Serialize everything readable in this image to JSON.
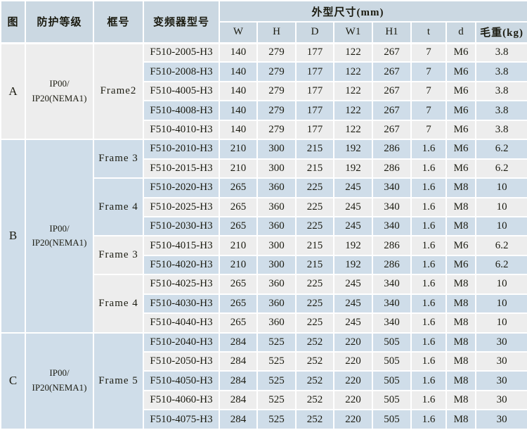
{
  "colors": {
    "header_bg": "#cbd8e2",
    "group_bg": "#dce3ee",
    "row_blue": "#cfdde9",
    "row_gray": "#ededed",
    "text_color": "#1b1b10",
    "grid": "#ffffff"
  },
  "table": {
    "headers": {
      "figure": "图",
      "protection": "防护等级",
      "frame": "框号",
      "model": "变频器型号",
      "dimensions": "外型尺寸(mm)",
      "sub_columns": [
        "W",
        "H",
        "D",
        "W1",
        "H1",
        "t",
        "d"
      ],
      "weight": "毛重(kg)"
    },
    "groups": [
      {
        "figure": "A",
        "protection": "IP00/\nIP20(NEMA1)",
        "frames": [
          {
            "label": "Frame2",
            "rows": [
              {
                "model": "F510-2005-H3",
                "values": [
                  "140",
                  "279",
                  "177",
                  "122",
                  "267",
                  "7",
                  "M6"
                ],
                "weight": "3.8"
              },
              {
                "model": "F510-2008-H3",
                "values": [
                  "140",
                  "279",
                  "177",
                  "122",
                  "267",
                  "7",
                  "M6"
                ],
                "weight": "3.8"
              },
              {
                "model": "F510-4005-H3",
                "values": [
                  "140",
                  "279",
                  "177",
                  "122",
                  "267",
                  "7",
                  "M6"
                ],
                "weight": "3.8"
              },
              {
                "model": "F510-4008-H3",
                "values": [
                  "140",
                  "279",
                  "177",
                  "122",
                  "267",
                  "7",
                  "M6"
                ],
                "weight": "3.8"
              },
              {
                "model": "F510-4010-H3",
                "values": [
                  "140",
                  "279",
                  "177",
                  "122",
                  "267",
                  "7",
                  "M6"
                ],
                "weight": "3.8"
              }
            ]
          }
        ]
      },
      {
        "figure": "B",
        "protection": "IP00/\nIP20(NEMA1)",
        "frames": [
          {
            "label": "Frame 3",
            "rows": [
              {
                "model": "F510-2010-H3",
                "values": [
                  "210",
                  "300",
                  "215",
                  "192",
                  "286",
                  "1.6",
                  "M6"
                ],
                "weight": "6.2"
              },
              {
                "model": "F510-2015-H3",
                "values": [
                  "210",
                  "300",
                  "215",
                  "192",
                  "286",
                  "1.6",
                  "M6"
                ],
                "weight": "6.2"
              }
            ]
          },
          {
            "label": "Frame 4",
            "rows": [
              {
                "model": "F510-2020-H3",
                "values": [
                  "265",
                  "360",
                  "225",
                  "245",
                  "340",
                  "1.6",
                  "M8"
                ],
                "weight": "10"
              },
              {
                "model": "F510-2025-H3",
                "values": [
                  "265",
                  "360",
                  "225",
                  "245",
                  "340",
                  "1.6",
                  "M8"
                ],
                "weight": "10"
              },
              {
                "model": "F510-2030-H3",
                "values": [
                  "265",
                  "360",
                  "225",
                  "245",
                  "340",
                  "1.6",
                  "M8"
                ],
                "weight": "10"
              }
            ]
          },
          {
            "label": "Frame 3",
            "rows": [
              {
                "model": "F510-4015-H3",
                "values": [
                  "210",
                  "300",
                  "215",
                  "192",
                  "286",
                  "1.6",
                  "M6"
                ],
                "weight": "6.2"
              },
              {
                "model": "F510-4020-H3",
                "values": [
                  "210",
                  "300",
                  "215",
                  "192",
                  "286",
                  "1.6",
                  "M6"
                ],
                "weight": "6.2"
              }
            ]
          },
          {
            "label": "Frame 4",
            "rows": [
              {
                "model": "F510-4025-H3",
                "values": [
                  "265",
                  "360",
                  "225",
                  "245",
                  "340",
                  "1.6",
                  "M8"
                ],
                "weight": "10"
              },
              {
                "model": "F510-4030-H3",
                "values": [
                  "265",
                  "360",
                  "225",
                  "245",
                  "340",
                  "1.6",
                  "M8"
                ],
                "weight": "10"
              },
              {
                "model": "F510-4040-H3",
                "values": [
                  "265",
                  "360",
                  "225",
                  "245",
                  "340",
                  "1.6",
                  "M8"
                ],
                "weight": "10"
              }
            ]
          }
        ]
      },
      {
        "figure": "C",
        "protection": "IP00/\nIP20(NEMA1)",
        "frames": [
          {
            "label": "Frame 5",
            "rows": [
              {
                "model": "F510-2040-H3",
                "values": [
                  "284",
                  "525",
                  "252",
                  "220",
                  "505",
                  "1.6",
                  "M8"
                ],
                "weight": "30"
              },
              {
                "model": "F510-2050-H3",
                "values": [
                  "284",
                  "525",
                  "252",
                  "220",
                  "505",
                  "1.6",
                  "M8"
                ],
                "weight": "30"
              },
              {
                "model": "F510-4050-H3",
                "values": [
                  "284",
                  "525",
                  "252",
                  "220",
                  "505",
                  "1.6",
                  "M8"
                ],
                "weight": "30"
              },
              {
                "model": "F510-4060-H3",
                "values": [
                  "284",
                  "525",
                  "252",
                  "220",
                  "505",
                  "1.6",
                  "M8"
                ],
                "weight": "30"
              },
              {
                "model": "F510-4075-H3",
                "values": [
                  "284",
                  "525",
                  "252",
                  "220",
                  "505",
                  "1.6",
                  "M8"
                ],
                "weight": "30"
              }
            ]
          }
        ]
      }
    ]
  }
}
